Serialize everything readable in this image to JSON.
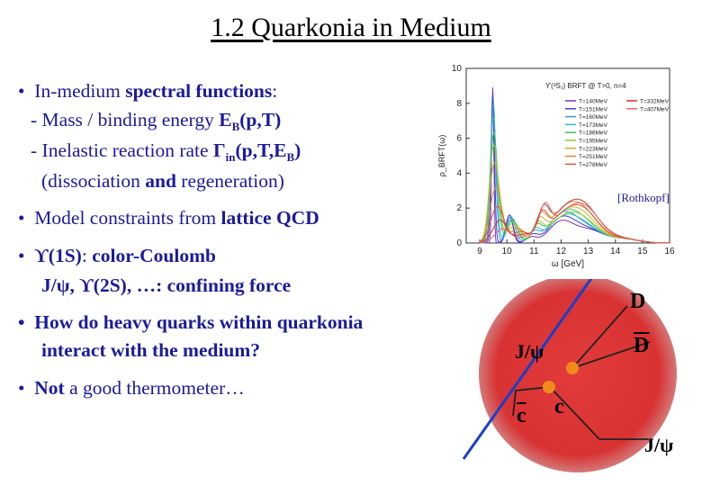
{
  "slide": {
    "title": "1.2 Quarkonia in Medium",
    "citation": "[Rothkopf]"
  },
  "bullets": {
    "b1": {
      "bullet": "•",
      "pre": "In-medium ",
      "bold": "spectral functions",
      "post": ":",
      "sub1_pre": "- Mass / binding energy ",
      "sub1_bold": "E",
      "sub1_subscript": "B",
      "sub1_bold2": "(p,T)",
      "sub2_pre": "- Inelastic reaction rate ",
      "sub2_bold": "Γ",
      "sub2_subscript": "in",
      "sub2_bold2": "(p,T,E",
      "sub2_subscript2": "B",
      "sub2_bold3": ")",
      "sub3_pre": "(dissociation ",
      "sub3_bold": "and",
      "sub3_post": " regeneration)"
    },
    "b2": {
      "bullet": "•",
      "pre": "Model constraints from ",
      "bold": "lattice QCD"
    },
    "b3": {
      "bullet": "•",
      "state": "ϒ(1S)",
      "colon": ": ",
      "bold": "color-Coulomb",
      "line2_pre": "J/ψ, ϒ(2S), …: ",
      "line2_bold": "confining force"
    },
    "b4": {
      "bullet": "•",
      "line1": "How do heavy quarks within quarkonia",
      "line2": "interact with the medium?"
    },
    "b5": {
      "bullet": "•",
      "bold": "Not",
      "post": " a good thermometer…"
    }
  },
  "chart_data": {
    "type": "line",
    "title": "ϒ(³S₁) BRFT @ T>0, n=4",
    "xlabel": "ω [GeV]",
    "ylabel": "ρ_BRFT(ω)",
    "xlim": [
      8.5,
      16
    ],
    "ylim": [
      0,
      10
    ],
    "xticks": [
      9,
      10,
      11,
      12,
      13,
      14,
      15,
      16
    ],
    "yticks": [
      0,
      2,
      4,
      6,
      8,
      10
    ],
    "legend_position": "top-right",
    "series": [
      {
        "name": "T=140MeV",
        "color": "#7b2fbf",
        "peak_x": 9.48,
        "peak_y": 8.9,
        "exc_x": 10.1,
        "exc_y": 1.6
      },
      {
        "name": "T=151MeV",
        "color": "#3c3cd6",
        "peak_x": 9.48,
        "peak_y": 8.5,
        "exc_x": 10.1,
        "exc_y": 1.6
      },
      {
        "name": "T=160MeV",
        "color": "#2f9fd6",
        "peak_x": 9.5,
        "peak_y": 8.0,
        "exc_x": 10.15,
        "exc_y": 1.5
      },
      {
        "name": "T=173MeV",
        "color": "#2fbfbf",
        "peak_x": 9.5,
        "peak_y": 7.2,
        "exc_x": 10.2,
        "exc_y": 1.4
      },
      {
        "name": "T=186MeV",
        "color": "#3fbf5f",
        "peak_x": 9.52,
        "peak_y": 6.3,
        "exc_x": 10.2,
        "exc_y": 1.3
      },
      {
        "name": "T=195MeV",
        "color": "#8fcf2f",
        "peak_x": 9.52,
        "peak_y": 5.6,
        "exc_x": 10.25,
        "exc_y": 1.2
      },
      {
        "name": "T=223MeV",
        "color": "#c6b62f",
        "peak_x": 9.55,
        "peak_y": 4.6,
        "exc_x": 10.3,
        "exc_y": 1.0
      },
      {
        "name": "T=251MeV",
        "color": "#e08a2f",
        "peak_x": 9.6,
        "peak_y": 3.2,
        "exc_x": 10.4,
        "exc_y": 0.8
      },
      {
        "name": "T=278MeV",
        "color": "#e0552f",
        "peak_x": 9.65,
        "peak_y": 2.1,
        "exc_x": 10.5,
        "exc_y": 0.6
      },
      {
        "name": "T=332MeV",
        "color": "#d02f2f",
        "peak_x": 9.75,
        "peak_y": 1.3,
        "exc_x": 10.6,
        "exc_y": 0.4
      },
      {
        "name": "T=407MeV",
        "color": "#e06a6a",
        "peak_x": 9.85,
        "peak_y": 0.8,
        "exc_x": 10.8,
        "exc_y": 0.3
      }
    ]
  },
  "diagram": {
    "D": "D",
    "Dbar": "D",
    "jpsi_inner": "J/ψ",
    "cbar": "c",
    "c": "c",
    "jpsi_outer": "J/ψ",
    "colors": {
      "fireball": "#e23b3b",
      "quark": "#f08a1c",
      "line": "#222222",
      "blue": "#1a3fc8"
    }
  }
}
